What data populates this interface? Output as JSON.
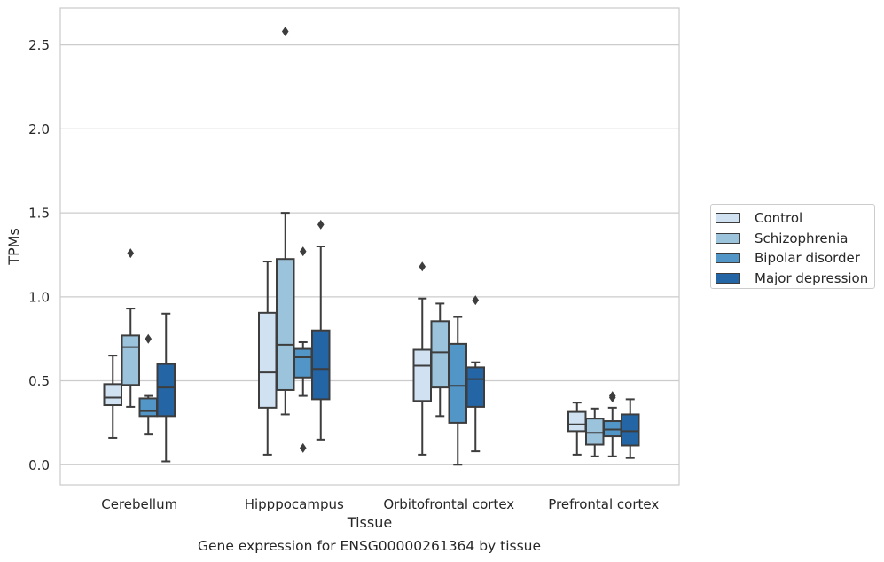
{
  "chart_data": {
    "type": "box",
    "xlabel": "Tissue",
    "ylabel": "TPMs",
    "caption": "Gene expression for ENSG00000261364 by tissue",
    "ylim": [
      -0.12,
      2.72
    ],
    "yticks": [
      "0.0",
      "0.5",
      "1.0",
      "1.5",
      "2.0",
      "2.5"
    ],
    "grid": "horizontal",
    "legend_placement": "right",
    "categories": [
      "Cerebellum",
      "Hipppocampus",
      "Orbitofrontal cortex",
      "Prefrontal cortex"
    ],
    "series": [
      {
        "name": "Control",
        "color": "#d0e1f2",
        "boxes": [
          {
            "min": 0.16,
            "q1": 0.355,
            "median": 0.4,
            "q3": 0.48,
            "max": 0.65,
            "outliers": []
          },
          {
            "min": 0.06,
            "q1": 0.34,
            "median": 0.55,
            "q3": 0.905,
            "max": 1.21,
            "outliers": []
          },
          {
            "min": 0.06,
            "q1": 0.38,
            "median": 0.59,
            "q3": 0.685,
            "max": 0.99,
            "outliers": [
              1.18
            ]
          },
          {
            "min": 0.06,
            "q1": 0.2,
            "median": 0.24,
            "q3": 0.315,
            "max": 0.37,
            "outliers": []
          }
        ]
      },
      {
        "name": "Schizophrenia",
        "color": "#9cc3dc",
        "boxes": [
          {
            "min": 0.345,
            "q1": 0.475,
            "median": 0.7,
            "q3": 0.77,
            "max": 0.93,
            "outliers": [
              1.26
            ]
          },
          {
            "min": 0.3,
            "q1": 0.445,
            "median": 0.715,
            "q3": 1.225,
            "max": 1.5,
            "outliers": [
              2.58
            ]
          },
          {
            "min": 0.29,
            "q1": 0.46,
            "median": 0.67,
            "q3": 0.855,
            "max": 0.96,
            "outliers": []
          },
          {
            "min": 0.05,
            "q1": 0.12,
            "median": 0.19,
            "q3": 0.275,
            "max": 0.335,
            "outliers": []
          }
        ]
      },
      {
        "name": "Bipolar disorder",
        "color": "#5196c6",
        "boxes": [
          {
            "min": 0.18,
            "q1": 0.29,
            "median": 0.32,
            "q3": 0.395,
            "max": 0.41,
            "outliers": [
              0.75
            ]
          },
          {
            "min": 0.41,
            "q1": 0.52,
            "median": 0.64,
            "q3": 0.69,
            "max": 0.73,
            "outliers": [
              1.27,
              0.1
            ]
          },
          {
            "min": 0.0,
            "q1": 0.25,
            "median": 0.47,
            "q3": 0.72,
            "max": 0.88,
            "outliers": []
          },
          {
            "min": 0.05,
            "q1": 0.17,
            "median": 0.21,
            "q3": 0.26,
            "max": 0.34,
            "outliers": [
              0.4,
              0.41
            ]
          }
        ]
      },
      {
        "name": "Major depression",
        "color": "#2465a6",
        "boxes": [
          {
            "min": 0.02,
            "q1": 0.29,
            "median": 0.46,
            "q3": 0.6,
            "max": 0.9,
            "outliers": []
          },
          {
            "min": 0.15,
            "q1": 0.39,
            "median": 0.57,
            "q3": 0.8,
            "max": 1.3,
            "outliers": [
              1.43
            ]
          },
          {
            "min": 0.08,
            "q1": 0.345,
            "median": 0.51,
            "q3": 0.58,
            "max": 0.61,
            "outliers": [
              0.98
            ]
          },
          {
            "min": 0.04,
            "q1": 0.115,
            "median": 0.2,
            "q3": 0.3,
            "max": 0.39,
            "outliers": []
          }
        ]
      }
    ]
  }
}
